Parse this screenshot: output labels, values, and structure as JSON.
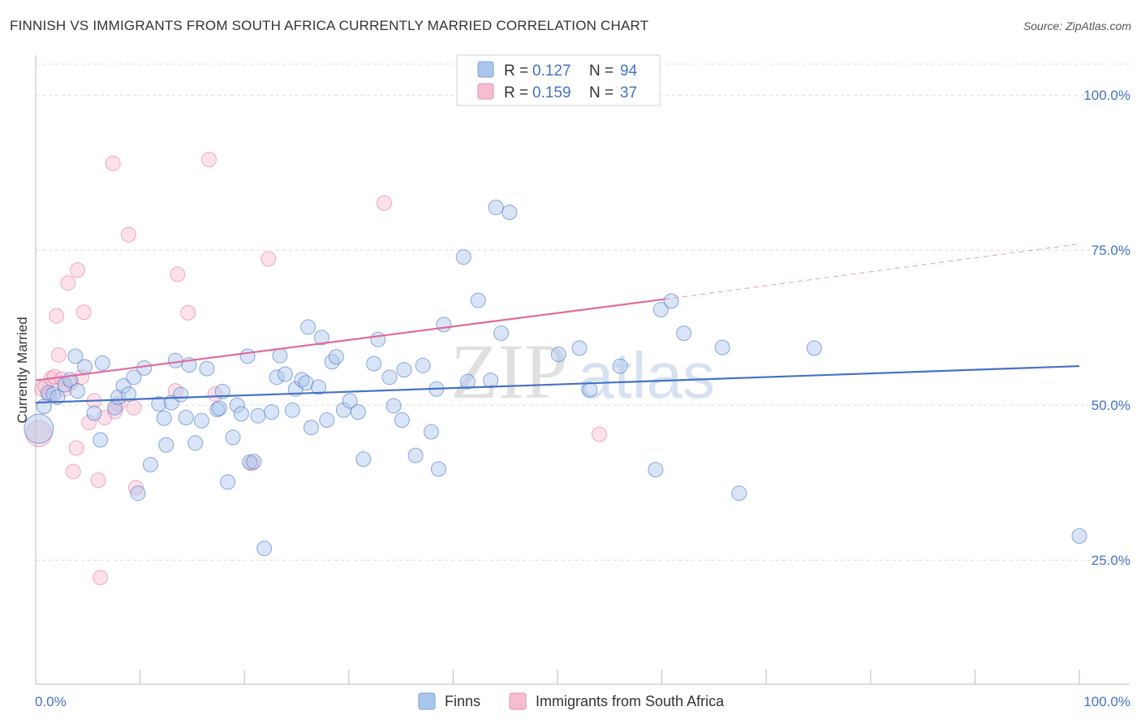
{
  "title": "FINNISH VS IMMIGRANTS FROM SOUTH AFRICA CURRENTLY MARRIED CORRELATION CHART",
  "source": "Source: ZipAtlas.com",
  "watermark": {
    "zip": "ZIP",
    "atlas": "atlas"
  },
  "colors": {
    "finns": "#4472c4",
    "finns_fill": "#aac6ec",
    "sa": "#e06c9a",
    "sa_fill": "#f6bdd0",
    "grid": "#dcdcdc",
    "axis_text": "#4472c4"
  },
  "legend_top": {
    "rows": [
      {
        "r_label": "R =",
        "r_value": "0.127",
        "n_label": "N =",
        "n_value": "94"
      },
      {
        "r_label": "R =",
        "r_value": "0.159",
        "n_label": "N =",
        "n_value": "37"
      }
    ]
  },
  "legend_bottom": {
    "finns": "Finns",
    "sa": "Immigrants from South Africa"
  },
  "chart_data": {
    "type": "scatter",
    "title": "FINNISH VS IMMIGRANTS FROM SOUTH AFRICA CURRENTLY MARRIED CORRELATION CHART",
    "xlabel": "",
    "ylabel": "Currently Married",
    "xlim": [
      0,
      100
    ],
    "ylim": [
      5,
      100
    ],
    "x_tick_labels": [
      "0.0%",
      "100.0%"
    ],
    "y_ticks": [
      25,
      50,
      75,
      100
    ],
    "y_tick_labels": [
      "25.0%",
      "50.0%",
      "75.0%",
      "100.0%"
    ],
    "grid": true,
    "legend": "top-center",
    "series": [
      {
        "name": "Finns",
        "r": 0.127,
        "n": 94,
        "trend": {
          "x": [
            0,
            100
          ],
          "y": [
            50.4,
            56.3
          ]
        },
        "points": [
          [
            0.3,
            46.2
          ],
          [
            0.8,
            49.8
          ],
          [
            1.2,
            52.0
          ],
          [
            1.7,
            51.8
          ],
          [
            2.1,
            51.3
          ],
          [
            2.8,
            53.3
          ],
          [
            3.3,
            54.1
          ],
          [
            4.0,
            52.3
          ],
          [
            4.7,
            56.2
          ],
          [
            5.6,
            48.7
          ],
          [
            6.4,
            56.8
          ],
          [
            6.2,
            44.4
          ],
          [
            7.6,
            49.6
          ],
          [
            7.9,
            51.3
          ],
          [
            8.4,
            53.1
          ],
          [
            8.9,
            51.8
          ],
          [
            9.4,
            54.5
          ],
          [
            9.8,
            35.8
          ],
          [
            10.4,
            56.0
          ],
          [
            11.0,
            40.4
          ],
          [
            11.8,
            50.2
          ],
          [
            12.3,
            47.9
          ],
          [
            12.5,
            43.6
          ],
          [
            13.0,
            50.4
          ],
          [
            13.4,
            57.2
          ],
          [
            13.9,
            51.7
          ],
          [
            14.4,
            48.0
          ],
          [
            14.7,
            56.5
          ],
          [
            15.3,
            43.9
          ],
          [
            15.9,
            47.5
          ],
          [
            16.4,
            55.9
          ],
          [
            17.4,
            49.3
          ],
          [
            17.6,
            49.5
          ],
          [
            17.9,
            52.2
          ],
          [
            18.4,
            37.6
          ],
          [
            18.9,
            44.8
          ],
          [
            19.3,
            50.0
          ],
          [
            19.7,
            48.6
          ],
          [
            20.5,
            40.8
          ],
          [
            20.9,
            40.9
          ],
          [
            21.3,
            48.3
          ],
          [
            21.9,
            26.9
          ],
          [
            22.6,
            48.9
          ],
          [
            23.1,
            54.5
          ],
          [
            23.4,
            58.0
          ],
          [
            23.9,
            55.0
          ],
          [
            24.6,
            49.2
          ],
          [
            24.9,
            52.6
          ],
          [
            25.5,
            54.1
          ],
          [
            25.9,
            53.6
          ],
          [
            26.1,
            62.6
          ],
          [
            26.4,
            46.4
          ],
          [
            27.1,
            52.9
          ],
          [
            27.4,
            60.9
          ],
          [
            27.9,
            47.6
          ],
          [
            28.4,
            57.0
          ],
          [
            28.8,
            57.8
          ],
          [
            29.5,
            49.2
          ],
          [
            30.1,
            50.7
          ],
          [
            30.9,
            48.9
          ],
          [
            31.4,
            41.3
          ],
          [
            32.4,
            56.7
          ],
          [
            32.8,
            60.6
          ],
          [
            33.9,
            54.5
          ],
          [
            34.3,
            49.9
          ],
          [
            35.1,
            47.6
          ],
          [
            35.3,
            55.7
          ],
          [
            36.4,
            41.9
          ],
          [
            37.1,
            56.4
          ],
          [
            37.9,
            45.7
          ],
          [
            38.4,
            52.6
          ],
          [
            38.6,
            39.7
          ],
          [
            39.1,
            63.0
          ],
          [
            41.0,
            73.9
          ],
          [
            41.4,
            53.8
          ],
          [
            42.4,
            66.9
          ],
          [
            43.6,
            54.0
          ],
          [
            44.1,
            81.9
          ],
          [
            44.6,
            61.6
          ],
          [
            45.4,
            81.1
          ],
          [
            50.1,
            58.2
          ],
          [
            52.1,
            59.2
          ],
          [
            53.1,
            52.5
          ],
          [
            59.4,
            39.6
          ],
          [
            59.9,
            65.4
          ],
          [
            62.1,
            61.6
          ],
          [
            65.8,
            59.3
          ],
          [
            67.4,
            35.8
          ],
          [
            74.6,
            59.2
          ],
          [
            100.0,
            28.9
          ],
          [
            60.9,
            66.8
          ],
          [
            56.0,
            56.3
          ],
          [
            3.8,
            57.9
          ],
          [
            20.3,
            57.9
          ]
        ]
      },
      {
        "name": "Immigrants from South Africa",
        "r": 0.159,
        "n": 37,
        "trend": {
          "x": [
            0,
            60.3
          ],
          "y": [
            54.0,
            67.1
          ]
        },
        "trend_dashed": {
          "x": [
            60.3,
            100
          ],
          "y": [
            67.1,
            76.0
          ]
        },
        "points": [
          [
            0.3,
            45.4
          ],
          [
            0.6,
            52.6
          ],
          [
            0.9,
            53.0
          ],
          [
            1.3,
            51.6
          ],
          [
            1.5,
            54.3
          ],
          [
            1.8,
            54.6
          ],
          [
            2.0,
            64.4
          ],
          [
            2.2,
            58.1
          ],
          [
            2.5,
            54.2
          ],
          [
            2.8,
            52.6
          ],
          [
            3.1,
            69.7
          ],
          [
            3.4,
            53.7
          ],
          [
            3.6,
            39.3
          ],
          [
            3.9,
            43.1
          ],
          [
            4.0,
            71.8
          ],
          [
            4.4,
            54.5
          ],
          [
            4.6,
            65.0
          ],
          [
            5.1,
            47.2
          ],
          [
            5.6,
            50.7
          ],
          [
            6.0,
            37.9
          ],
          [
            6.2,
            22.2
          ],
          [
            6.6,
            48.0
          ],
          [
            7.4,
            89.0
          ],
          [
            7.9,
            50.2
          ],
          [
            7.6,
            49.0
          ],
          [
            8.9,
            77.5
          ],
          [
            9.4,
            49.6
          ],
          [
            9.6,
            36.7
          ],
          [
            13.4,
            52.3
          ],
          [
            13.6,
            71.1
          ],
          [
            14.6,
            64.9
          ],
          [
            16.6,
            89.6
          ],
          [
            17.2,
            51.8
          ],
          [
            20.7,
            40.6
          ],
          [
            22.3,
            73.6
          ],
          [
            33.4,
            82.6
          ],
          [
            54.0,
            45.3
          ]
        ]
      }
    ]
  }
}
